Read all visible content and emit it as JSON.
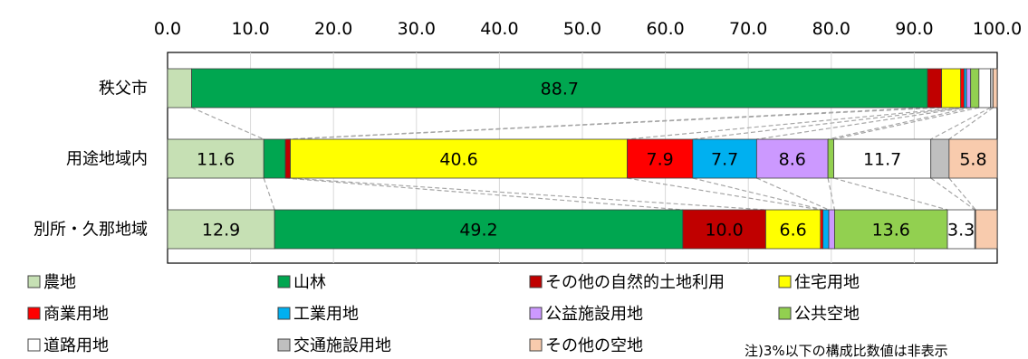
{
  "chart_data": {
    "type": "bar",
    "orientation": "horizontal",
    "stacked": true,
    "xlim": [
      0,
      100
    ],
    "x_ticks": [
      "0.0",
      "10.0",
      "20.0",
      "30.0",
      "40.0",
      "50.0",
      "60.0",
      "70.0",
      "80.0",
      "90.0",
      "100.0"
    ],
    "grid": "vertical",
    "categories": [
      "秩父市",
      "用途地域内",
      "別所・久那地域"
    ],
    "series": [
      {
        "name": "農地",
        "color": "#c6e0b4",
        "values": [
          2.9,
          11.6,
          12.9
        ],
        "labels": [
          "",
          "11.6",
          "12.9"
        ]
      },
      {
        "name": "山林",
        "color": "#00a650",
        "values": [
          88.7,
          2.6,
          49.2
        ],
        "labels": [
          "88.7",
          "",
          "49.2"
        ]
      },
      {
        "name": "その他の自然的土地利用",
        "color": "#c00000",
        "values": [
          1.7,
          0.6,
          10.0
        ],
        "labels": [
          "",
          "",
          "10.0"
        ]
      },
      {
        "name": "住宅用地",
        "color": "#ffff00",
        "values": [
          2.3,
          40.6,
          6.6
        ],
        "labels": [
          "",
          "40.6",
          "6.6"
        ]
      },
      {
        "name": "商業用地",
        "color": "#ff0000",
        "values": [
          0.4,
          7.9,
          0.3
        ],
        "labels": [
          "",
          "7.9",
          ""
        ]
      },
      {
        "name": "工業用地",
        "color": "#00b0f0",
        "values": [
          0.3,
          7.7,
          0.7
        ],
        "labels": [
          "",
          "7.7",
          ""
        ]
      },
      {
        "name": "公益施設用地",
        "color": "#cc99ff",
        "values": [
          0.5,
          8.6,
          0.7
        ],
        "labels": [
          "",
          "8.6",
          ""
        ]
      },
      {
        "name": "公共空地",
        "color": "#92d050",
        "values": [
          1.0,
          0.7,
          13.6
        ],
        "labels": [
          "",
          "",
          "13.6"
        ]
      },
      {
        "name": "道路用地",
        "color": "#ffffff",
        "values": [
          1.4,
          11.7,
          3.3
        ],
        "labels": [
          "",
          "11.7",
          "3.3"
        ]
      },
      {
        "name": "交通施設用地",
        "color": "#bfbfbf",
        "values": [
          0.3,
          2.2,
          0.1
        ],
        "labels": [
          "",
          "",
          ""
        ]
      },
      {
        "name": "その他の空地",
        "color": "#f8cbad",
        "values": [
          0.5,
          5.8,
          2.6
        ],
        "labels": [
          "",
          "5.8",
          ""
        ]
      }
    ],
    "legend_position": "bottom",
    "note": "注)3%以下の構成比数値は非表示"
  }
}
